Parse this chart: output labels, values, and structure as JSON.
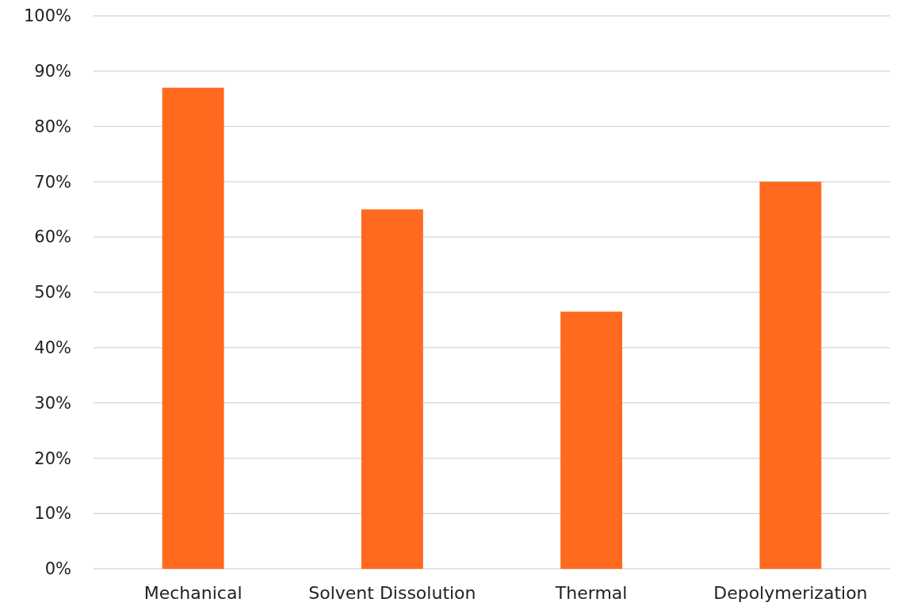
{
  "chart_data": {
    "type": "bar",
    "categories": [
      "Mechanical",
      "Solvent Dissolution",
      "Thermal",
      "Depolymerization"
    ],
    "values": [
      87,
      65,
      46.5,
      70
    ],
    "color": "#ff6a1f",
    "ylim": [
      0,
      100
    ],
    "yticks": [
      {
        "value": 0,
        "label": "0%"
      },
      {
        "value": 10,
        "label": "10%"
      },
      {
        "value": 20,
        "label": "20%"
      },
      {
        "value": 30,
        "label": "30%"
      },
      {
        "value": 40,
        "label": "40%"
      },
      {
        "value": 50,
        "label": "50%"
      },
      {
        "value": 60,
        "label": "60%"
      },
      {
        "value": 70,
        "label": "70%"
      },
      {
        "value": 80,
        "label": "80%"
      },
      {
        "value": 90,
        "label": "90%"
      },
      {
        "value": 100,
        "label": "100%"
      }
    ],
    "grid": "y"
  }
}
